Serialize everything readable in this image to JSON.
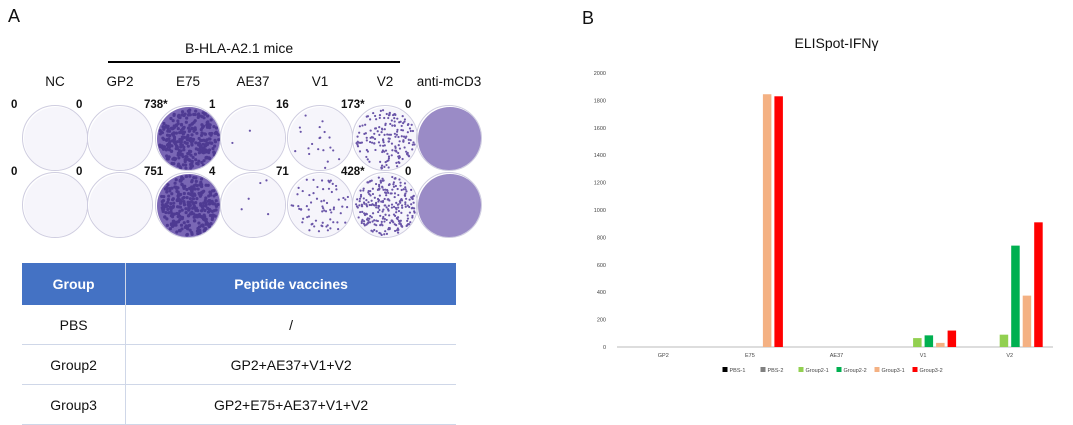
{
  "panel_a": {
    "letter": "A",
    "mice_header": "B-HLA-A2.1 mice",
    "columns": [
      "NC",
      "GP2",
      "E75",
      "AE37",
      "V1",
      "V2",
      "anti-mCD3"
    ],
    "rows": [
      [
        "0",
        "0",
        "738*",
        "1",
        "16",
        "173*",
        "0"
      ],
      [
        "0",
        "0",
        "751",
        "4",
        "71",
        "428*",
        "0"
      ]
    ]
  },
  "table": {
    "headers": [
      "Group",
      "Peptide vaccines"
    ],
    "rows": [
      [
        "PBS",
        "/"
      ],
      [
        "Group2",
        "GP2+AE37+V1+V2"
      ],
      [
        "Group3",
        "GP2+E75+AE37+V1+V2"
      ]
    ]
  },
  "panel_b": {
    "letter": "B"
  },
  "chart_data": {
    "type": "bar",
    "title": "ELISpot-IFNγ",
    "xlabel": "",
    "ylabel": "",
    "categories": [
      "GP2",
      "E75",
      "AE37",
      "V1",
      "V2"
    ],
    "ylim": [
      0,
      2000
    ],
    "yticks": [
      0,
      200,
      400,
      600,
      800,
      1000,
      1200,
      1400,
      1600,
      1800,
      2000
    ],
    "legend_position": "bottom",
    "series": [
      {
        "name": "PBS-1",
        "color": "#000000",
        "values": [
          0,
          0,
          0,
          0,
          0
        ]
      },
      {
        "name": "PBS-2",
        "color": "#808080",
        "values": [
          0,
          0,
          0,
          0,
          0
        ]
      },
      {
        "name": "Group2-1",
        "color": "#92d050",
        "values": [
          0,
          0,
          0,
          65,
          90
        ]
      },
      {
        "name": "Group2-2",
        "color": "#00b050",
        "values": [
          0,
          0,
          0,
          85,
          740
        ]
      },
      {
        "name": "Group3-1",
        "color": "#f4b183",
        "values": [
          0,
          1845,
          0,
          30,
          375
        ]
      },
      {
        "name": "Group3-2",
        "color": "#ff0000",
        "values": [
          0,
          1830,
          0,
          120,
          910
        ]
      }
    ]
  }
}
